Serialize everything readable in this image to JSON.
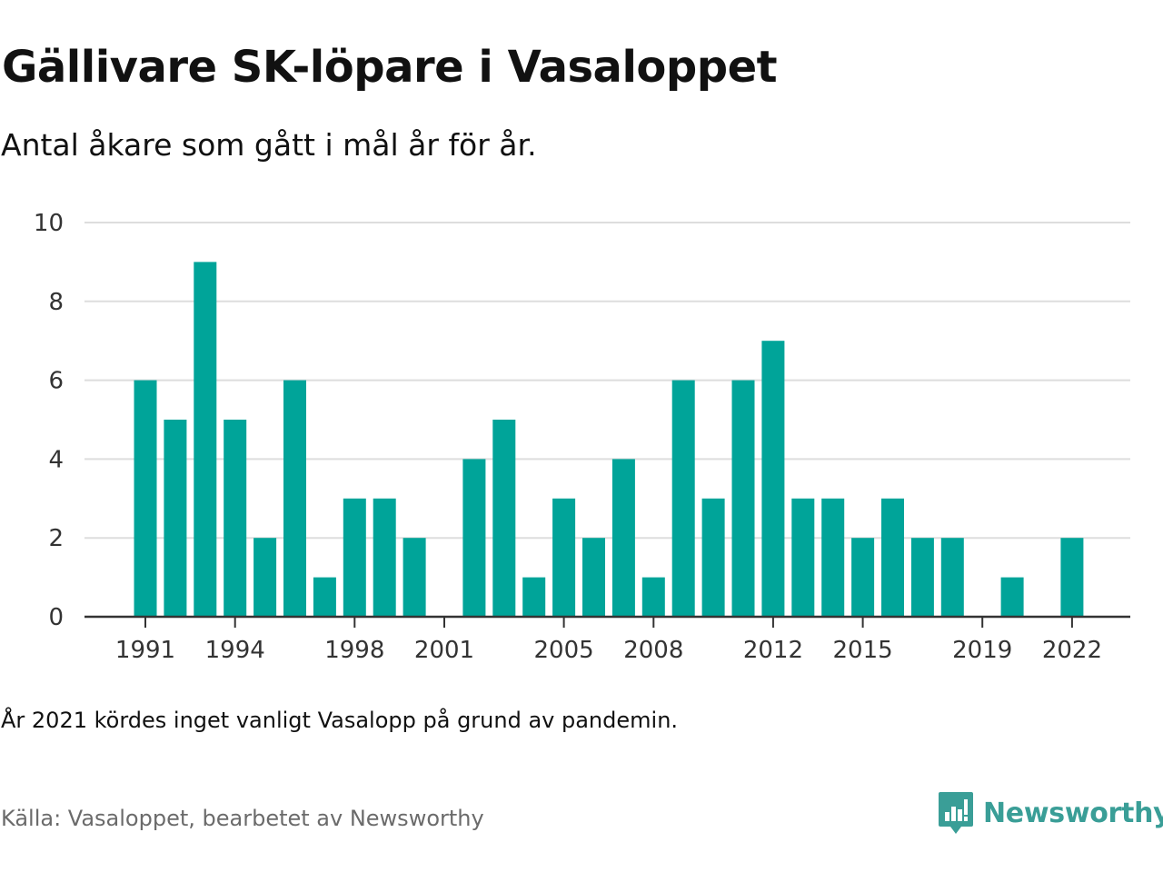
{
  "header": {
    "title": "Gällivare SK-löpare i Vasaloppet",
    "subtitle": "Antal åkare som gått i mål år för år."
  },
  "footer": {
    "note": "År 2021 kördes inget vanligt Vasalopp på grund av pandemin.",
    "source": "Källa: Vasaloppet, bearbetet av Newsworthy",
    "brand": "Newsworthy",
    "brand_icon": "newsworthy-bar-chart-speech-bubble-icon"
  },
  "colors": {
    "bar": "#00a499",
    "brand": "#3a9e97",
    "grid": "#dddddd",
    "axis": "#333333",
    "source_text": "#6b6b6b"
  },
  "chart_data": {
    "type": "bar",
    "title": "Gällivare SK-löpare i Vasaloppet",
    "subtitle": "Antal åkare som gått i mål år för år.",
    "xlabel": "",
    "ylabel": "",
    "ylim": [
      0,
      10
    ],
    "yticks": [
      0,
      2,
      4,
      6,
      8,
      10
    ],
    "xticks": [
      1991,
      1994,
      1998,
      2001,
      2005,
      2008,
      2012,
      2015,
      2019,
      2022
    ],
    "grid": true,
    "legend": "none",
    "categories": [
      1991,
      1992,
      1993,
      1994,
      1995,
      1996,
      1997,
      1998,
      1999,
      2000,
      2001,
      2002,
      2003,
      2004,
      2005,
      2006,
      2007,
      2008,
      2009,
      2010,
      2011,
      2012,
      2013,
      2014,
      2015,
      2016,
      2017,
      2018,
      2019,
      2020,
      2021,
      2022
    ],
    "values": [
      6,
      5,
      9,
      5,
      2,
      6,
      1,
      3,
      3,
      2,
      0,
      4,
      5,
      1,
      3,
      2,
      4,
      1,
      6,
      3,
      6,
      7,
      3,
      3,
      2,
      3,
      2,
      2,
      0,
      1,
      0,
      2
    ]
  }
}
